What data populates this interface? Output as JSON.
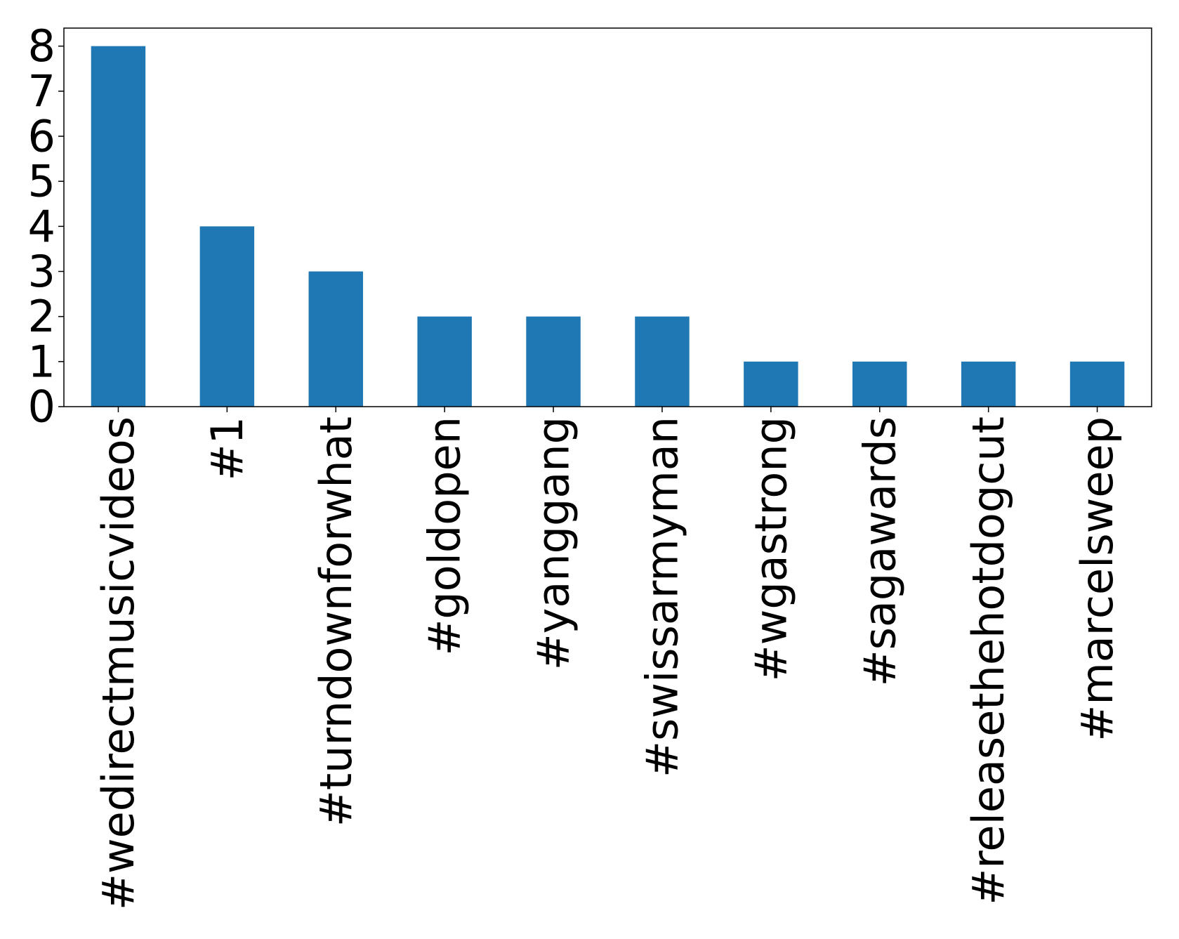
{
  "chart_data": {
    "type": "bar",
    "categories": [
      "#wedirectmusicvideos",
      "#1",
      "#turndownforwhat",
      "#goldopen",
      "#yanggang",
      "#swissarmyman",
      "#wgastrong",
      "#sagawards",
      "#releasethehotdogcut",
      "#marcelsweep"
    ],
    "values": [
      8,
      4,
      3,
      2,
      2,
      2,
      1,
      1,
      1,
      1
    ],
    "color": "#1f77b4",
    "ylim": [
      0,
      8.4
    ],
    "yticks": [
      0,
      1,
      2,
      3,
      4,
      5,
      6,
      7,
      8
    ],
    "grid": false
  }
}
